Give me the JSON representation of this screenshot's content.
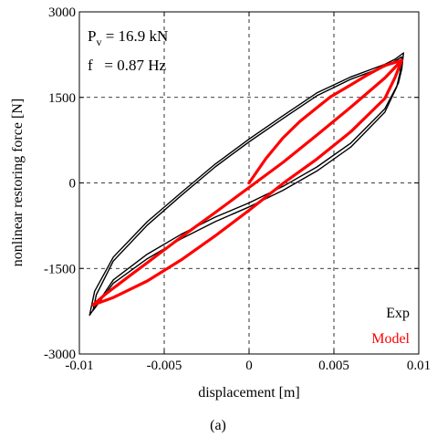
{
  "chart_data": {
    "type": "line",
    "xlabel": "displacement [m]",
    "ylabel": "nonlinear restoring force [N]",
    "xlim": [
      -0.01,
      0.01
    ],
    "ylim": [
      -3000,
      3000
    ],
    "xticks": [
      -0.01,
      -0.005,
      0,
      0.005,
      0.01
    ],
    "xtick_labels": [
      "-0.01",
      "-0.005",
      "0",
      "0.005",
      "0.01"
    ],
    "yticks": [
      -3000,
      -1500,
      0,
      1500,
      3000
    ],
    "ytick_labels": [
      "-3000",
      "-1500",
      "0",
      "1500",
      "3000"
    ],
    "grid": "dashed",
    "annotations": {
      "pv_label": "P",
      "pv_sub": "v",
      "pv_value": " =  16.9 kN",
      "f_text": "f   = 0.87 Hz"
    },
    "legend_position": "bottom-right",
    "caption": "(a)",
    "series": [
      {
        "name": "Exp",
        "color": "#000000",
        "loops": [
          {
            "x": [
              -0.0094,
              -0.008,
              -0.006,
              -0.004,
              -0.002,
              0.0,
              0.002,
              0.004,
              0.006,
              0.008,
              0.0088,
              0.009,
              0.0091,
              0.0086,
              0.008,
              0.006,
              0.004,
              0.002,
              0.0,
              -0.002,
              -0.004,
              -0.006,
              -0.008,
              -0.0091,
              -0.0094
            ],
            "y": [
              -2320,
              -1700,
              -1250,
              -900,
              -600,
              -350,
              -60,
              280,
              700,
              1300,
              1750,
              2000,
              2280,
              2170,
              2080,
              1860,
              1580,
              1180,
              770,
              330,
              -170,
              -680,
              -1300,
              -1900,
              -2320
            ]
          },
          {
            "x": [
              -0.0092,
              -0.008,
              -0.006,
              -0.004,
              -0.002,
              0.0,
              0.002,
              0.004,
              0.006,
              0.008,
              0.0087,
              0.0089,
              0.009,
              0.0085,
              0.008,
              0.006,
              0.004,
              0.002,
              0.0,
              -0.002,
              -0.004,
              -0.006,
              -0.008,
              -0.009,
              -0.0092
            ],
            "y": [
              -2240,
              -1760,
              -1330,
              -980,
              -680,
              -420,
              -130,
              210,
              630,
              1240,
              1680,
              1940,
              2210,
              2120,
              2040,
              1820,
              1530,
              1130,
              720,
              280,
              -220,
              -740,
              -1370,
              -1960,
              -2240
            ]
          }
        ]
      },
      {
        "name": "Model",
        "color": "#ff0000",
        "loops": [
          {
            "x": [
              0.0,
              0.001,
              0.002,
              0.003,
              0.004,
              0.0048
            ],
            "y": [
              0,
              430,
              790,
              1080,
              1320,
              1510
            ]
          },
          {
            "x": [
              0.0048,
              0.006,
              0.007,
              0.008,
              0.009,
              0.0086,
              0.008,
              0.006,
              0.004,
              0.002,
              0.0,
              -0.002,
              -0.004,
              -0.006,
              -0.008,
              -0.0092,
              -0.0085,
              -0.007,
              -0.006,
              -0.004,
              -0.002,
              0.0,
              0.002,
              0.004,
              0.006,
              0.008,
              0.009
            ],
            "y": [
              1510,
              1720,
              1900,
              2060,
              2150,
              1850,
              1480,
              900,
              420,
              -10,
              -480,
              -930,
              -1350,
              -1720,
              -2010,
              -2140,
              -1960,
              -1620,
              -1400,
              -950,
              -520,
              -80,
              360,
              840,
              1330,
              1840,
              2150
            ]
          }
        ]
      }
    ]
  }
}
